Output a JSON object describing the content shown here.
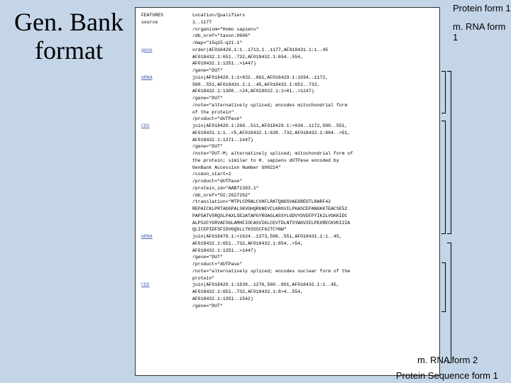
{
  "title_line1": "Gen. Bank",
  "title_line2": "format",
  "annotations": {
    "protein_form_1": "Protein form 1",
    "mrna_form_1": "m. RNA form 1",
    "mrna_form_2": "m. RNA form 2",
    "protein_seq_form_1": "Protein Sequence form 1"
  },
  "header": {
    "key": "FEATURES",
    "val": "Location/Qualifiers"
  },
  "rows": [
    {
      "key": "source",
      "plain": true,
      "val": "1..1177"
    },
    {
      "key": "",
      "val": "/organism=\"Homo sapiens\""
    },
    {
      "key": "",
      "val": "/db_xref=\"taxon:9606\""
    },
    {
      "key": "",
      "val": "/map=\"15q15-q21.1\""
    },
    {
      "key": "gene",
      "val": "order(AF018429.1:1..1713,1..1177,AF018431.1:1..45"
    },
    {
      "key": "",
      "val": "AF018432.1:651..732,AF018432.1:654..554,"
    },
    {
      "key": "",
      "val": "AF018432.1:1351..>1447)"
    },
    {
      "key": "",
      "val": "/gene=\"DUT\""
    },
    {
      "key": "mRNA",
      "val": "join(AF018429.1:1<832..861,AF018429.1:1034..1172,"
    },
    {
      "key": "",
      "val": "500..551,AF018431.1:1..45,AF018432.1:651..732,"
    },
    {
      "key": "",
      "val": "AF018432.1:1300..>24,AF018022.1:1>01..>1247)"
    },
    {
      "key": "",
      "val": "/gene=\"DUT\""
    },
    {
      "key": "",
      "val": "/note=\"alternatively spliced; encodes mitochondrial form"
    },
    {
      "key": "",
      "val": "of the protein\""
    },
    {
      "key": "",
      "val": "/product=\"dUTPase\""
    },
    {
      "key": "CDS",
      "val": "join(AF018429.1:260..511,AF018429.1:>034..1172,500..551,"
    },
    {
      "key": "",
      "val": "AF018431.1:1..<5,AF018432.1:638..732,AF018432.1:884..>51,"
    },
    {
      "key": "",
      "val": "AF018432.1:1371..1447)"
    },
    {
      "key": "",
      "val": "/gene=\"DUT\""
    },
    {
      "key": "",
      "val": "/note=\"DUT-M; alternatively spliced; mitochondrial form of"
    },
    {
      "key": "",
      "val": "the protein; similar to H. sapiens dUTPase encoded by"
    },
    {
      "key": "",
      "val": "GenBank Accession Number U90224\""
    },
    {
      "key": "",
      "val": "/codon_start=1"
    },
    {
      "key": "",
      "val": "/product=\"dUTPase\""
    },
    {
      "key": "",
      "val": "/protein_id=\"AAB71393.1\""
    },
    {
      "key": "",
      "val": "/db_xref=\"GI:2627262\""
    },
    {
      "key": "",
      "val": "/translation=\"MTPLCPRALCVHFLRATQNGSVAEGREGTLRARF42"
    },
    {
      "key": "",
      "val": "REPAICKLPRTAGGPALSKVGHQRGNEVCLKRGVILPKASCEPANGKKTEACSE52"
    },
    {
      "key": "",
      "val": "PAPSATVSRQSLPAXLSE2ATAPGYROAGLASSYLGDVYDVDFPYIK2LVGKKIDC"
    },
    {
      "key": "",
      "val": "ALPS2CYGRVAFSGLAMHFIOCASVIKLCEVTDLNTSYWGVIELPEXRECKVKI2IA"
    },
    {
      "key": "",
      "val": "QLICEPIDFSFIDVGQGLLTKSSSCF02TCYNW\""
    },
    {
      "key": "mRNA",
      "val": "join(AF018479.1:<1624..1373,506..551,AF018431.1:1..45,"
    },
    {
      "key": "",
      "val": "AF018432.1:651..732,AF018432.1:854..>54,"
    },
    {
      "key": "",
      "val": "AF018432.1:1351..>1447)"
    },
    {
      "key": "",
      "val": "/gene=\"DUT\""
    },
    {
      "key": "",
      "val": "/product=\"dUTPase\""
    },
    {
      "key": "",
      "val": "/note=\"alternatively spliced; encodes nuclear form of the"
    },
    {
      "key": "",
      "val": "protein\""
    },
    {
      "key": "CDS",
      "val": "join(AF018429.1:1638..1276,560..601,AF018432.1:1..45,"
    },
    {
      "key": "",
      "val": "AF018432.1:651..732,AF018432.1:8>4..554,"
    },
    {
      "key": "",
      "val": "AF018432.1:1351..1542)"
    },
    {
      "key": "",
      "val": "/gene=\"DUT\""
    }
  ]
}
